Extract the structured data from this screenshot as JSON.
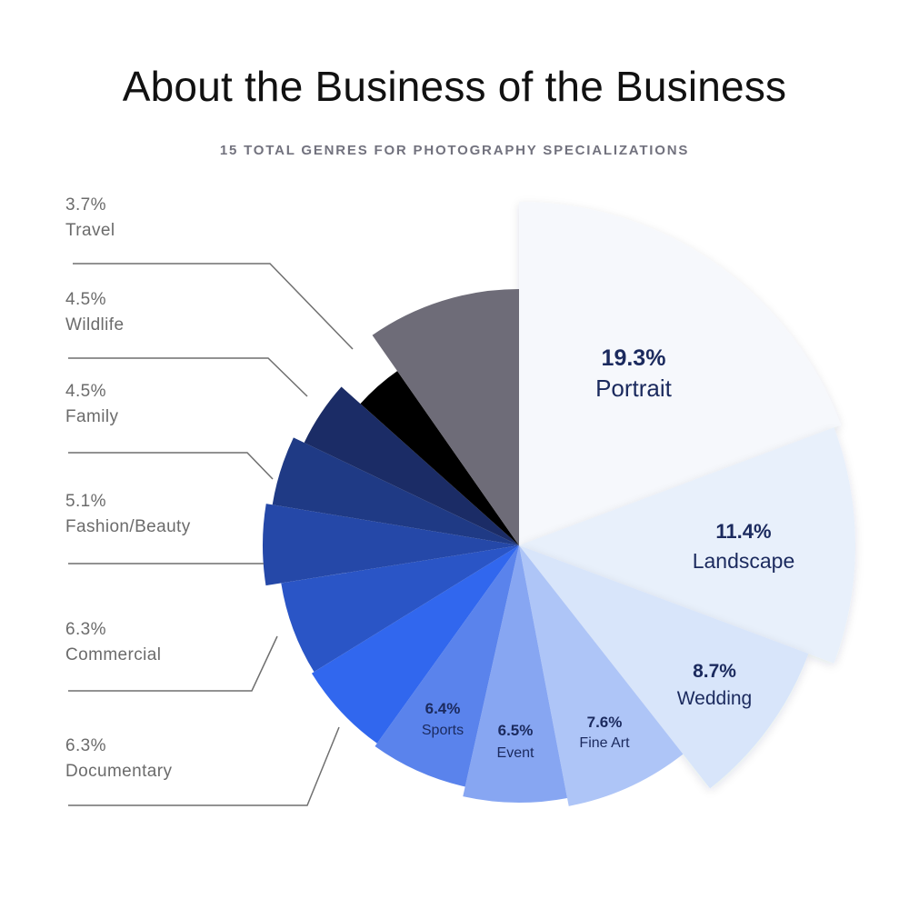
{
  "title": "About the Business of the Business",
  "subtitle": "15 TOTAL GENRES FOR PHOTOGRAPHY SPECIALIZATIONS",
  "chart_data": {
    "type": "pie",
    "title": "About the Business of the Business",
    "subtitle": "15 TOTAL GENRES FOR PHOTOGRAPHY SPECIALIZATIONS",
    "slices": [
      {
        "label": "Portrait",
        "value": 19.3,
        "display": "19.3%",
        "color": "#f6f8fc",
        "label_placement": "inside"
      },
      {
        "label": "Landscape",
        "value": 11.4,
        "display": "11.4%",
        "color": "#e8f0fb",
        "label_placement": "inside"
      },
      {
        "label": "Wedding",
        "value": 8.7,
        "display": "8.7%",
        "color": "#d8e5fa",
        "label_placement": "inside"
      },
      {
        "label": "Fine Art",
        "value": 7.6,
        "display": "7.6%",
        "color": "#aec5f7",
        "label_placement": "inside"
      },
      {
        "label": "Event",
        "value": 6.5,
        "display": "6.5%",
        "color": "#87a6f2",
        "label_placement": "inside"
      },
      {
        "label": "Sports",
        "value": 6.4,
        "display": "6.4%",
        "color": "#5a83ec",
        "label_placement": "inside"
      },
      {
        "label": "Documentary",
        "value": 6.3,
        "display": "6.3%",
        "color": "#3167ee",
        "label_placement": "outside"
      },
      {
        "label": "Commercial",
        "value": 6.3,
        "display": "6.3%",
        "color": "#2a55c6",
        "label_placement": "outside"
      },
      {
        "label": "Fashion/Beauty",
        "value": 5.1,
        "display": "5.1%",
        "color": "#2548a8",
        "label_placement": "outside"
      },
      {
        "label": "Family",
        "value": 4.5,
        "display": "4.5%",
        "color": "#1f3a85",
        "label_placement": "outside"
      },
      {
        "label": "Wildlife",
        "value": 4.5,
        "display": "4.5%",
        "color": "#1b2c66",
        "label_placement": "outside"
      },
      {
        "label": "Travel",
        "value": 3.7,
        "display": "3.7%",
        "color": "#000000",
        "label_placement": "outside"
      },
      {
        "label": "",
        "value": 9.7,
        "display": "",
        "color": "#6e6c78",
        "label_placement": "none"
      }
    ]
  }
}
